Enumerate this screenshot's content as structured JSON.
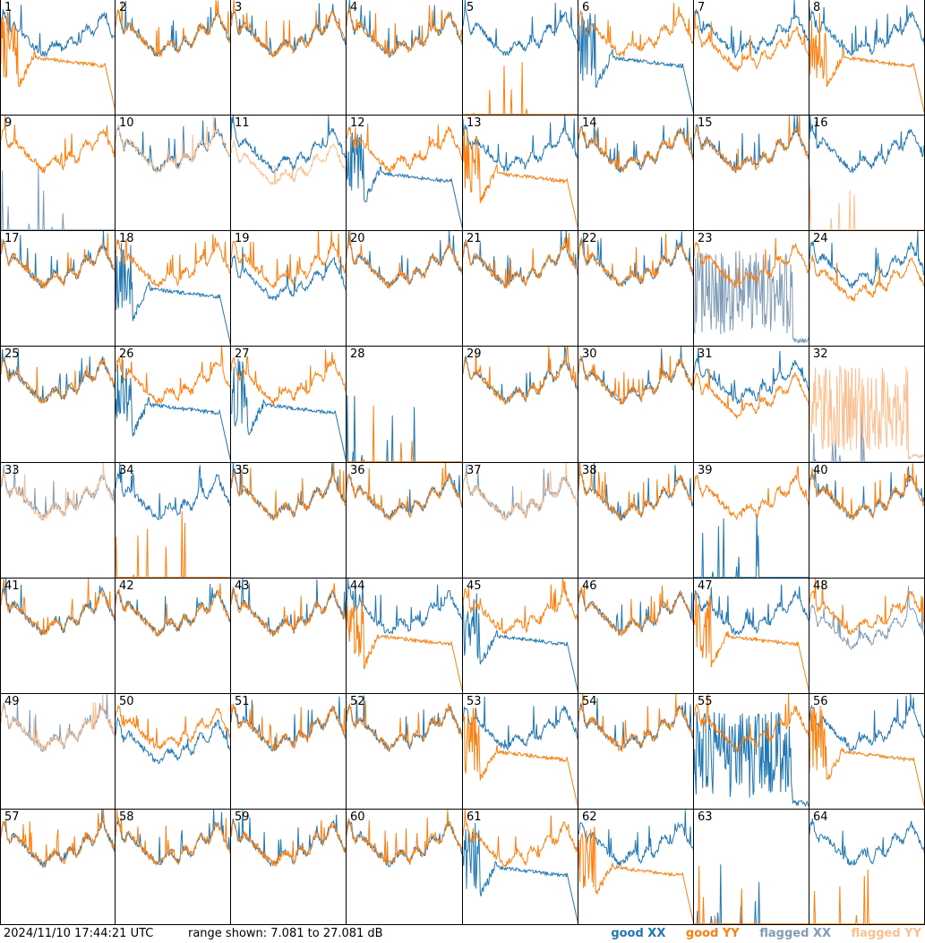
{
  "chart_data": {
    "type": "line",
    "title": "",
    "grid": {
      "rows": 8,
      "cols": 8
    },
    "panels": [
      {
        "label": "1",
        "xx": "good",
        "yy": "good",
        "xx_shape": "normal",
        "yy_shape": "droop"
      },
      {
        "label": "2",
        "xx": "good",
        "yy": "good",
        "xx_shape": "normal",
        "yy_shape": "normal"
      },
      {
        "label": "3",
        "xx": "good",
        "yy": "good",
        "xx_shape": "normal",
        "yy_shape": "normal"
      },
      {
        "label": "4",
        "xx": "good",
        "yy": "good",
        "xx_shape": "normal",
        "yy_shape": "normal"
      },
      {
        "label": "5",
        "xx": "good",
        "yy": "good",
        "xx_shape": "normal",
        "yy_shape": "dead"
      },
      {
        "label": "6",
        "xx": "good",
        "yy": "good",
        "xx_shape": "droop",
        "yy_shape": "normal"
      },
      {
        "label": "7",
        "xx": "good",
        "yy": "good",
        "xx_shape": "normal",
        "yy_shape": "low"
      },
      {
        "label": "8",
        "xx": "good",
        "yy": "good",
        "xx_shape": "normal",
        "yy_shape": "droop"
      },
      {
        "label": "9",
        "xx": "flagged",
        "yy": "good",
        "xx_shape": "dead",
        "yy_shape": "normal"
      },
      {
        "label": "10",
        "xx": "good",
        "yy": "flagged",
        "xx_shape": "normal",
        "yy_shape": "normal"
      },
      {
        "label": "11",
        "xx": "good",
        "yy": "flagged",
        "xx_shape": "normal",
        "yy_shape": "low"
      },
      {
        "label": "12",
        "xx": "good",
        "yy": "good",
        "xx_shape": "droop",
        "yy_shape": "normal"
      },
      {
        "label": "13",
        "xx": "good",
        "yy": "good",
        "xx_shape": "normal",
        "yy_shape": "droop"
      },
      {
        "label": "14",
        "xx": "good",
        "yy": "good",
        "xx_shape": "normal",
        "yy_shape": "normal"
      },
      {
        "label": "15",
        "xx": "good",
        "yy": "good",
        "xx_shape": "normal",
        "yy_shape": "normal"
      },
      {
        "label": "16",
        "xx": "good",
        "yy": "flagged",
        "xx_shape": "normal",
        "yy_shape": "dead"
      },
      {
        "label": "17",
        "xx": "good",
        "yy": "good",
        "xx_shape": "normal",
        "yy_shape": "normal"
      },
      {
        "label": "18",
        "xx": "good",
        "yy": "good",
        "xx_shape": "droop",
        "yy_shape": "normal"
      },
      {
        "label": "19",
        "xx": "good",
        "yy": "good",
        "xx_shape": "low",
        "yy_shape": "normal"
      },
      {
        "label": "20",
        "xx": "good",
        "yy": "good",
        "xx_shape": "normal",
        "yy_shape": "normal"
      },
      {
        "label": "21",
        "xx": "good",
        "yy": "good",
        "xx_shape": "normal",
        "yy_shape": "normal"
      },
      {
        "label": "22",
        "xx": "good",
        "yy": "good",
        "xx_shape": "normal",
        "yy_shape": "normal"
      },
      {
        "label": "23",
        "xx": "flagged",
        "yy": "good",
        "xx_shape": "noisy",
        "yy_shape": "normal"
      },
      {
        "label": "24",
        "xx": "good",
        "yy": "good",
        "xx_shape": "normal",
        "yy_shape": "low"
      },
      {
        "label": "25",
        "xx": "good",
        "yy": "good",
        "xx_shape": "normal",
        "yy_shape": "normal"
      },
      {
        "label": "26",
        "xx": "good",
        "yy": "good",
        "xx_shape": "droop",
        "yy_shape": "normal"
      },
      {
        "label": "27",
        "xx": "good",
        "yy": "good",
        "xx_shape": "droop",
        "yy_shape": "normal"
      },
      {
        "label": "28",
        "xx": "good",
        "yy": "good",
        "xx_shape": "dead",
        "yy_shape": "dead"
      },
      {
        "label": "29",
        "xx": "good",
        "yy": "good",
        "xx_shape": "normal",
        "yy_shape": "normal"
      },
      {
        "label": "30",
        "xx": "good",
        "yy": "good",
        "xx_shape": "normal",
        "yy_shape": "normal"
      },
      {
        "label": "31",
        "xx": "good",
        "yy": "good",
        "xx_shape": "normal",
        "yy_shape": "low"
      },
      {
        "label": "32",
        "xx": "flagged",
        "yy": "flagged",
        "xx_shape": "dead",
        "yy_shape": "noisy"
      },
      {
        "label": "33",
        "xx": "flagged",
        "yy": "flagged",
        "xx_shape": "normal",
        "yy_shape": "normal"
      },
      {
        "label": "34",
        "xx": "good",
        "yy": "good",
        "xx_shape": "normal",
        "yy_shape": "dead"
      },
      {
        "label": "35",
        "xx": "good",
        "yy": "good",
        "xx_shape": "normal",
        "yy_shape": "normal"
      },
      {
        "label": "36",
        "xx": "good",
        "yy": "good",
        "xx_shape": "normal",
        "yy_shape": "normal"
      },
      {
        "label": "37",
        "xx": "flagged",
        "yy": "flagged",
        "xx_shape": "normal",
        "yy_shape": "normal"
      },
      {
        "label": "38",
        "xx": "good",
        "yy": "good",
        "xx_shape": "normal",
        "yy_shape": "normal"
      },
      {
        "label": "39",
        "xx": "good",
        "yy": "good",
        "xx_shape": "dead",
        "yy_shape": "normal"
      },
      {
        "label": "40",
        "xx": "good",
        "yy": "good",
        "xx_shape": "normal",
        "yy_shape": "normal"
      },
      {
        "label": "41",
        "xx": "good",
        "yy": "good",
        "xx_shape": "normal",
        "yy_shape": "normal"
      },
      {
        "label": "42",
        "xx": "good",
        "yy": "good",
        "xx_shape": "normal",
        "yy_shape": "normal"
      },
      {
        "label": "43",
        "xx": "good",
        "yy": "good",
        "xx_shape": "normal",
        "yy_shape": "normal"
      },
      {
        "label": "44",
        "xx": "good",
        "yy": "good",
        "xx_shape": "normal",
        "yy_shape": "droop"
      },
      {
        "label": "45",
        "xx": "good",
        "yy": "good",
        "xx_shape": "droop",
        "yy_shape": "normal"
      },
      {
        "label": "46",
        "xx": "good",
        "yy": "good",
        "xx_shape": "normal",
        "yy_shape": "normal"
      },
      {
        "label": "47",
        "xx": "good",
        "yy": "good",
        "xx_shape": "normal",
        "yy_shape": "droop"
      },
      {
        "label": "48",
        "xx": "flagged",
        "yy": "good",
        "xx_shape": "low",
        "yy_shape": "normal"
      },
      {
        "label": "49",
        "xx": "flagged",
        "yy": "flagged",
        "xx_shape": "normal",
        "yy_shape": "normal"
      },
      {
        "label": "50",
        "xx": "good",
        "yy": "good",
        "xx_shape": "low",
        "yy_shape": "normal"
      },
      {
        "label": "51",
        "xx": "good",
        "yy": "good",
        "xx_shape": "normal",
        "yy_shape": "normal"
      },
      {
        "label": "52",
        "xx": "good",
        "yy": "good",
        "xx_shape": "normal",
        "yy_shape": "normal"
      },
      {
        "label": "53",
        "xx": "good",
        "yy": "good",
        "xx_shape": "normal",
        "yy_shape": "droop"
      },
      {
        "label": "54",
        "xx": "good",
        "yy": "good",
        "xx_shape": "normal",
        "yy_shape": "normal"
      },
      {
        "label": "55",
        "xx": "good",
        "yy": "good",
        "xx_shape": "noisy",
        "yy_shape": "normal"
      },
      {
        "label": "56",
        "xx": "good",
        "yy": "good",
        "xx_shape": "normal",
        "yy_shape": "droop"
      },
      {
        "label": "57",
        "xx": "good",
        "yy": "good",
        "xx_shape": "normal",
        "yy_shape": "normal"
      },
      {
        "label": "58",
        "xx": "good",
        "yy": "good",
        "xx_shape": "normal",
        "yy_shape": "normal"
      },
      {
        "label": "59",
        "xx": "good",
        "yy": "good",
        "xx_shape": "normal",
        "yy_shape": "normal"
      },
      {
        "label": "60",
        "xx": "good",
        "yy": "good",
        "xx_shape": "normal",
        "yy_shape": "normal"
      },
      {
        "label": "61",
        "xx": "good",
        "yy": "good",
        "xx_shape": "droop",
        "yy_shape": "normal"
      },
      {
        "label": "62",
        "xx": "good",
        "yy": "good",
        "xx_shape": "normal",
        "yy_shape": "droop"
      },
      {
        "label": "63",
        "xx": "good",
        "yy": "good",
        "xx_shape": "dead",
        "yy_shape": "dead"
      },
      {
        "label": "64",
        "xx": "good",
        "yy": "good",
        "xx_shape": "normal",
        "yy_shape": "dead"
      }
    ],
    "ylim_db": [
      7.081,
      27.081
    ]
  },
  "footer": {
    "timestamp": "2024/11/10 17:44:21 UTC",
    "range": "range shown: 7.081 to 27.081 dB",
    "legend": [
      {
        "label": "good XX",
        "color": "#1f77b4"
      },
      {
        "label": "good YY",
        "color": "#ff7f0e"
      },
      {
        "label": "flagged XX",
        "color": "#7f9bb8"
      },
      {
        "label": "flagged YY",
        "color": "#fdbf8f"
      }
    ]
  },
  "colors": {
    "good_xx": "#1f77b4",
    "good_yy": "#ff7f0e",
    "flagged_xx": "#7f9bb8",
    "flagged_yy": "#fdbf8f"
  }
}
